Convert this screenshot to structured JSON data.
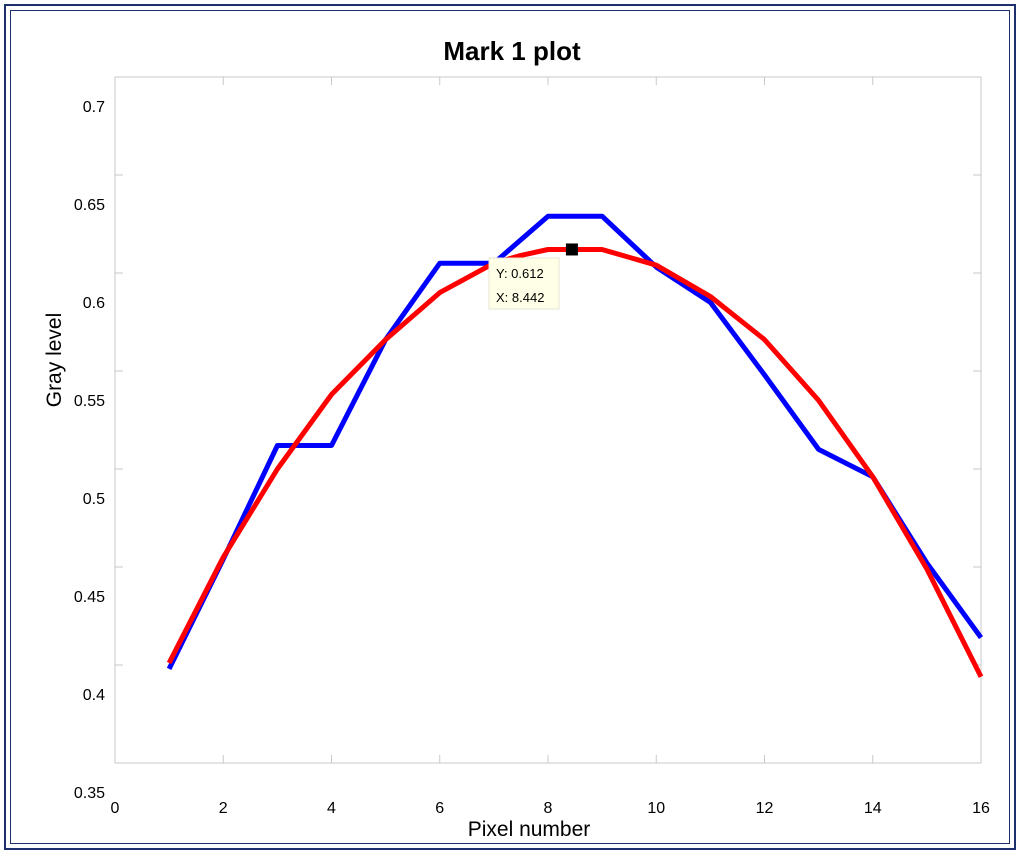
{
  "chart_data": {
    "type": "line",
    "title": "Mark 1 plot",
    "xlabel": "Pixel number",
    "ylabel": "Gray level",
    "xlim": [
      0,
      16
    ],
    "ylim": [
      0.35,
      0.7
    ],
    "xticks": [
      0,
      2,
      4,
      6,
      8,
      10,
      12,
      14,
      16
    ],
    "yticks": [
      0.35,
      0.4,
      0.45,
      0.5,
      0.55,
      0.6,
      0.65,
      0.7
    ],
    "xtick_labels": [
      "0",
      "2",
      "4",
      "6",
      "8",
      "10",
      "12",
      "14",
      "16"
    ],
    "ytick_labels": [
      "0.35",
      "0.4",
      "0.45",
      "0.5",
      "0.55",
      "0.6",
      "0.65",
      "0.7"
    ],
    "grid": false,
    "series": [
      {
        "color": "#0000ff",
        "x": [
          1,
          2,
          3,
          4,
          5,
          6,
          7,
          8,
          9,
          10,
          11,
          12,
          13,
          14,
          15,
          16
        ],
        "y": [
          0.398,
          0.454,
          0.512,
          0.512,
          0.566,
          0.605,
          0.605,
          0.629,
          0.629,
          0.603,
          0.585,
          0.548,
          0.51,
          0.496,
          0.452,
          0.414
        ]
      },
      {
        "color": "#ff0000",
        "x": [
          1,
          2,
          3,
          4,
          5,
          6,
          7,
          7.5,
          8,
          9,
          10,
          11,
          12,
          13,
          14,
          15,
          16
        ],
        "y": [
          0.401,
          0.455,
          0.5,
          0.538,
          0.566,
          0.59,
          0.605,
          0.609,
          0.612,
          0.612,
          0.604,
          0.588,
          0.566,
          0.535,
          0.496,
          0.449,
          0.394
        ]
      }
    ],
    "datatip": {
      "x": 8.442,
      "y": 0.612,
      "y_label": "Y: 0.612",
      "x_label": "X: 8.442"
    }
  }
}
